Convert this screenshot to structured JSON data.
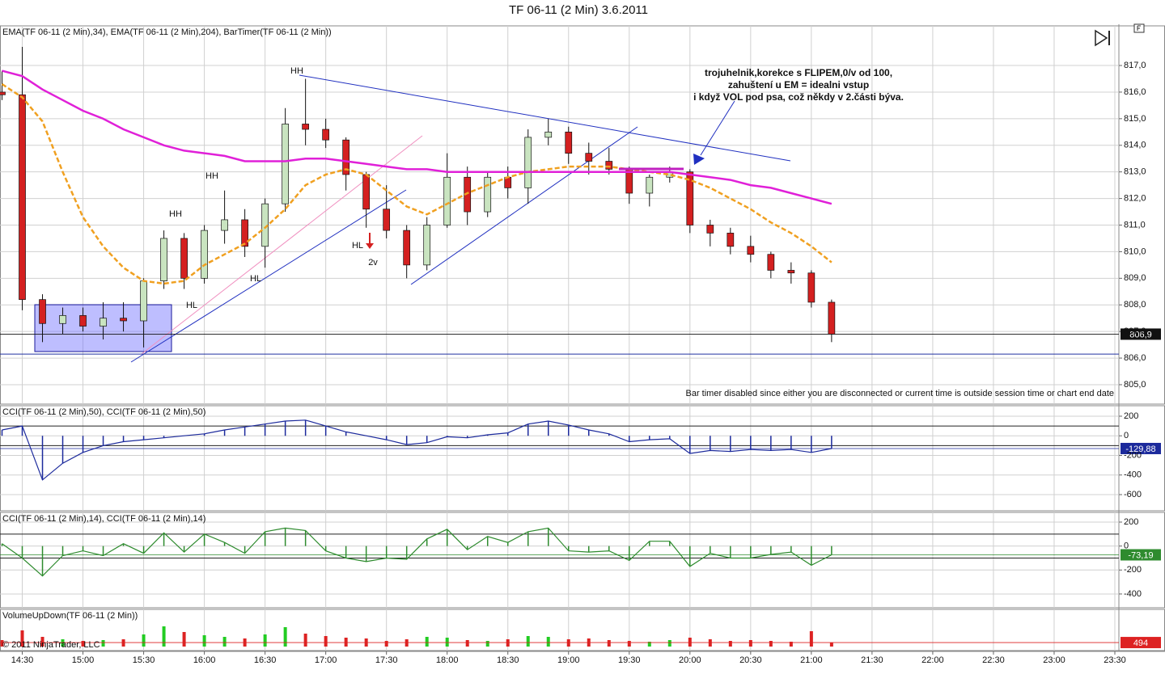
{
  "chart_data": {
    "type": "candlestick",
    "title": "TF 06-11 (2 Min)  3.6.2011",
    "x": [
      "14:20",
      "14:30",
      "14:40",
      "14:50",
      "15:00",
      "15:10",
      "15:20",
      "15:30",
      "15:40",
      "15:50",
      "16:00",
      "16:10",
      "16:20",
      "16:30",
      "16:40",
      "16:50",
      "17:00",
      "17:10",
      "17:20",
      "17:30",
      "17:40",
      "17:50",
      "18:00",
      "18:10",
      "18:20",
      "18:30",
      "18:40",
      "18:50",
      "19:00",
      "19:10",
      "19:20",
      "19:30",
      "19:40",
      "19:50",
      "20:00",
      "20:10",
      "20:20",
      "20:30",
      "20:40",
      "20:50",
      "21:00",
      "21:10"
    ],
    "xlim": [
      "14:19",
      "23:32"
    ],
    "xticks": [
      "14:30",
      "15:00",
      "15:30",
      "16:00",
      "16:30",
      "17:00",
      "17:30",
      "18:00",
      "18:30",
      "19:00",
      "19:30",
      "20:00",
      "20:30",
      "21:00",
      "21:30",
      "22:00",
      "22:30",
      "23:00",
      "23:30"
    ],
    "grid": true,
    "panels": [
      {
        "label": "EMA(TF 06-11 (2 Min),34), EMA(TF 06-11 (2 Min),204), BarTimer(TF 06-11 (2 Min))",
        "ylim": [
          804.27,
          818.49
        ],
        "yticks": [
          {
            "value": 805,
            "label": "805,0"
          },
          {
            "value": 806,
            "label": "806,0"
          },
          {
            "value": 807,
            "label": "807,0"
          },
          {
            "value": 808,
            "label": "808,0"
          },
          {
            "value": 809,
            "label": "809,0"
          },
          {
            "value": 810,
            "label": "810,0"
          },
          {
            "value": 811,
            "label": "811,0"
          },
          {
            "value": 812,
            "label": "812,0"
          },
          {
            "value": 813,
            "label": "813,0"
          },
          {
            "value": 814,
            "label": "814,0"
          },
          {
            "value": 815,
            "label": "815,0"
          },
          {
            "value": 816,
            "label": "816,0"
          },
          {
            "value": 817,
            "label": "817,0"
          }
        ],
        "candles": {
          "open": [
            816.0,
            815.9,
            808.2,
            807.3,
            807.6,
            807.2,
            807.5,
            807.4,
            808.9,
            810.5,
            809.0,
            810.8,
            811.2,
            810.2,
            811.8,
            814.8,
            814.6,
            814.2,
            812.9,
            811.6,
            810.8,
            809.5,
            811.0,
            812.8,
            811.5,
            812.8,
            812.4,
            814.3,
            814.5,
            813.7,
            813.4,
            813.1,
            812.2,
            812.8,
            813.0,
            811.0,
            810.7,
            810.2,
            809.9,
            809.3,
            809.2,
            808.1
          ],
          "high": [
            816.8,
            817.7,
            808.4,
            807.9,
            807.9,
            808.1,
            808.1,
            809.0,
            810.8,
            810.7,
            811.0,
            812.3,
            811.6,
            812.0,
            815.4,
            816.5,
            815.0,
            814.3,
            813.0,
            812.5,
            811.0,
            811.3,
            813.7,
            813.2,
            813.0,
            813.2,
            814.6,
            815.0,
            814.7,
            814.1,
            813.9,
            813.2,
            812.9,
            813.2,
            813.1,
            811.2,
            810.9,
            810.6,
            810.0,
            809.6,
            809.3,
            808.2
          ],
          "low": [
            815.7,
            807.8,
            806.6,
            806.9,
            807.0,
            806.7,
            807.0,
            806.4,
            808.6,
            808.6,
            808.8,
            810.3,
            809.8,
            809.4,
            811.5,
            814.0,
            813.9,
            812.3,
            810.9,
            810.5,
            809.0,
            809.3,
            810.9,
            811.0,
            811.3,
            812.0,
            811.8,
            814.0,
            813.3,
            812.9,
            812.9,
            811.8,
            811.7,
            812.6,
            810.7,
            810.2,
            809.9,
            809.6,
            809.0,
            808.8,
            807.9,
            806.6
          ],
          "close": [
            815.9,
            808.2,
            807.3,
            807.6,
            807.2,
            807.5,
            807.4,
            808.9,
            810.5,
            809.0,
            810.8,
            811.2,
            810.2,
            811.8,
            814.8,
            814.6,
            814.2,
            812.9,
            811.6,
            810.8,
            809.5,
            811.0,
            812.8,
            811.5,
            812.8,
            812.4,
            814.3,
            814.5,
            813.7,
            813.4,
            813.1,
            812.2,
            812.8,
            813.0,
            811.0,
            810.7,
            810.2,
            809.9,
            809.3,
            809.2,
            808.1,
            806.9
          ],
          "up_color": "#c9e4c0",
          "down_color": "#d42020"
        },
        "series": [
          {
            "color": "#f0a020",
            "dashed": true,
            "values": [
              816.3,
              815.8,
              814.9,
              813.0,
              811.3,
              810.2,
              809.4,
              808.9,
              808.8,
              808.9,
              809.5,
              809.9,
              810.3,
              810.9,
              811.6,
              812.5,
              812.9,
              813.1,
              812.9,
              812.3,
              811.7,
              811.4,
              811.8,
              812.2,
              812.5,
              812.8,
              813.0,
              813.1,
              813.2,
              813.2,
              813.2,
              813.1,
              813.0,
              812.9,
              812.7,
              812.4,
              812.0,
              811.6,
              811.1,
              810.7,
              810.2,
              809.6
            ]
          },
          {
            "color": "#e020d8",
            "dashed": false,
            "values": [
              816.8,
              816.6,
              816.1,
              815.7,
              815.3,
              815.0,
              814.6,
              814.3,
              814.0,
              813.8,
              813.7,
              813.6,
              813.4,
              813.4,
              813.4,
              813.5,
              813.5,
              813.4,
              813.3,
              813.2,
              813.1,
              813.1,
              813.0,
              813.0,
              813.0,
              813.0,
              813.0,
              813.0,
              813.0,
              813.0,
              813.0,
              813.0,
              813.0,
              813.0,
              812.9,
              812.8,
              812.7,
              812.5,
              812.4,
              812.2,
              812.0,
              811.8
            ]
          }
        ],
        "hline": 806.15,
        "last_value": {
          "value": 806.9,
          "label": "806,9"
        },
        "annotations": [
          "HH",
          "HH",
          "HH",
          "HL",
          "HL",
          "HL",
          "2v",
          "trojuhelnik,korekce s FLIPEM,0/v od 100,",
          "zahuštení u EM = idealni vstup",
          "i když VOL pod psa, což někdy v 2.části býva."
        ],
        "note": "Bar timer disabled since either you are disconnected or current time is outside session time or chart end date"
      },
      {
        "label": "CCI(TF 06-11 (2 Min),50), CCI(TF 06-11 (2 Min),50)",
        "ylim": [
          -765,
          307
        ],
        "yticks": [
          200,
          0,
          -200,
          -400,
          -600
        ],
        "levels": [
          100,
          -100
        ],
        "histogram": true,
        "series": [
          {
            "color": "#1c2a9c",
            "values": [
              60,
              100,
              -450,
              -280,
              -170,
              -100,
              -60,
              -40,
              -20,
              0,
              20,
              60,
              90,
              120,
              150,
              160,
              100,
              40,
              0,
              -40,
              -90,
              -70,
              -10,
              -20,
              10,
              30,
              120,
              150,
              110,
              60,
              20,
              -60,
              -40,
              -30,
              -180,
              -150,
              -160,
              -140,
              -150,
              -140,
              -170,
              -129.88
            ]
          }
        ],
        "last_value": {
          "value": -129.88,
          "label": "-129,88"
        }
      },
      {
        "label": "CCI(TF 06-11 (2 Min),14), CCI(TF 06-11 (2 Min),14)",
        "ylim": [
          -515,
          281
        ],
        "yticks": [
          200,
          0,
          -200,
          -400
        ],
        "levels": [
          100,
          -100
        ],
        "histogram": true,
        "series": [
          {
            "color": "#2e8b2e",
            "values": [
              20,
              -100,
              -250,
              -80,
              -40,
              -80,
              20,
              -60,
              110,
              -50,
              100,
              30,
              -60,
              120,
              150,
              130,
              -40,
              -100,
              -130,
              -100,
              -110,
              60,
              140,
              -30,
              80,
              30,
              120,
              150,
              -40,
              -50,
              -40,
              -120,
              40,
              40,
              -170,
              -60,
              -100,
              -100,
              -70,
              -50,
              -160,
              -73.19
            ]
          }
        ],
        "last_value": {
          "value": -73.19,
          "label": "-73,19"
        }
      },
      {
        "label": "VolumeUpDown(TF 06-11 (2 Min))",
        "ylim": [
          -500,
          4600
        ],
        "up_color": "#22cc22",
        "down_color": "#dd2222",
        "values": [
          800,
          2000,
          1200,
          900,
          700,
          800,
          900,
          1500,
          2500,
          1800,
          1400,
          1200,
          1000,
          1500,
          2400,
          1600,
          1300,
          1100,
          1000,
          700,
          900,
          1200,
          1100,
          800,
          700,
          900,
          1300,
          1200,
          900,
          1000,
          800,
          700,
          600,
          800,
          1100,
          900,
          700,
          800,
          700,
          600,
          1900,
          494
        ],
        "last_value": 494,
        "copyright": "© 2011 NinjaTrader, LLC"
      }
    ]
  }
}
